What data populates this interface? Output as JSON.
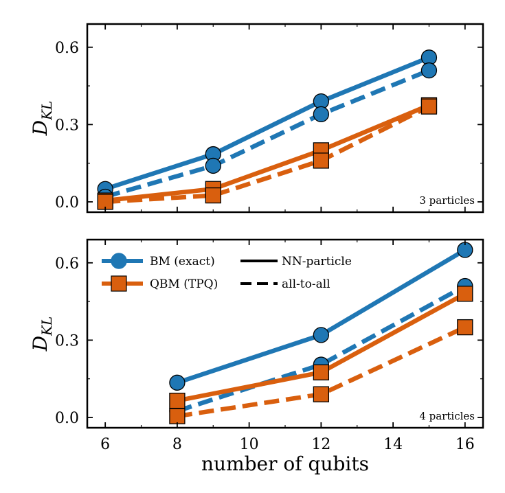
{
  "colors": {
    "bm": "#1f77b4",
    "qbm": "#d95f0e",
    "axis": "#000000"
  },
  "xlabel": "number of qubits",
  "legend": {
    "bm_label": "BM (exact)",
    "qbm_label": "QBM (TPQ)",
    "solid_label": "NN-particle",
    "dashed_label": "all-to-all"
  },
  "chart_data": [
    {
      "type": "line",
      "annotation": "3 particles",
      "ylabel": "D_KL",
      "xlim": [
        5.5,
        16.5
      ],
      "ylim": [
        -0.04,
        0.69
      ],
      "xticks": [
        6,
        8,
        10,
        12,
        14,
        16
      ],
      "yticks": [
        0.0,
        0.3,
        0.6
      ],
      "ytick_labels": [
        "0.0",
        "0.3",
        "0.6"
      ],
      "series": [
        {
          "model": "BM (exact)",
          "connectivity": "NN-particle",
          "x": [
            6,
            9,
            12,
            15
          ],
          "y": [
            0.05,
            0.185,
            0.39,
            0.56
          ]
        },
        {
          "model": "BM (exact)",
          "connectivity": "all-to-all",
          "x": [
            6,
            9,
            12,
            15
          ],
          "y": [
            0.02,
            0.14,
            0.34,
            0.51
          ]
        },
        {
          "model": "QBM (TPQ)",
          "connectivity": "NN-particle",
          "x": [
            6,
            9,
            12,
            15
          ],
          "y": [
            0.005,
            0.05,
            0.2,
            0.375
          ]
        },
        {
          "model": "QBM (TPQ)",
          "connectivity": "all-to-all",
          "x": [
            6,
            9,
            12,
            15
          ],
          "y": [
            0.0,
            0.025,
            0.16,
            0.37
          ]
        }
      ]
    },
    {
      "type": "line",
      "annotation": "4 particles",
      "ylabel": "D_KL",
      "xlim": [
        5.5,
        16.5
      ],
      "ylim": [
        -0.04,
        0.69
      ],
      "xticks": [
        6,
        8,
        10,
        12,
        14,
        16
      ],
      "yticks": [
        0.0,
        0.3,
        0.6
      ],
      "ytick_labels": [
        "0.0",
        "0.3",
        "0.6"
      ],
      "series": [
        {
          "model": "BM (exact)",
          "connectivity": "NN-particle",
          "x": [
            8,
            12,
            16
          ],
          "y": [
            0.135,
            0.32,
            0.65
          ]
        },
        {
          "model": "BM (exact)",
          "connectivity": "all-to-all",
          "x": [
            8,
            12,
            16
          ],
          "y": [
            0.025,
            0.205,
            0.51
          ]
        },
        {
          "model": "QBM (TPQ)",
          "connectivity": "NN-particle",
          "x": [
            8,
            12,
            16
          ],
          "y": [
            0.065,
            0.175,
            0.48
          ]
        },
        {
          "model": "QBM (TPQ)",
          "connectivity": "all-to-all",
          "x": [
            8,
            12,
            16
          ],
          "y": [
            0.005,
            0.09,
            0.35
          ]
        }
      ]
    }
  ]
}
